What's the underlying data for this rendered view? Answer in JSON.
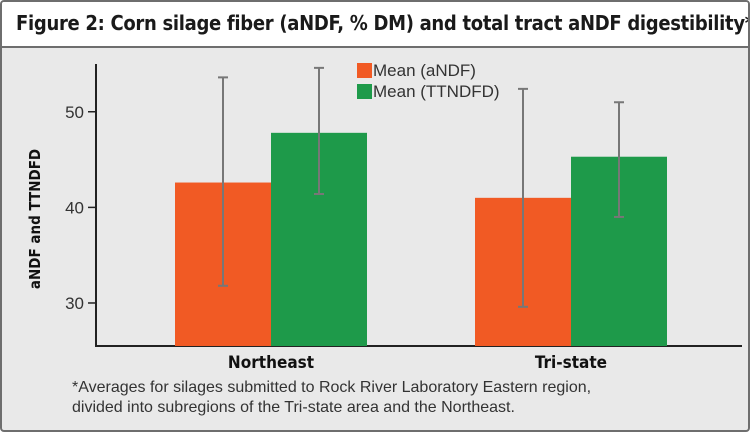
{
  "title": "Figure 2: Corn silage fiber (aNDF, % DM) and total tract aNDF digestibility*",
  "footnote_line1": "*Averages for silages submitted to Rock River Laboratory Eastern region,",
  "footnote_line2": "divided into subregions of the Tri-state area and the Northeast.",
  "chart_data": {
    "type": "bar",
    "title": "Figure 2: Corn silage fiber (aNDF, % DM) and total tract aNDF digestibility*",
    "xlabel": "",
    "ylabel": "aNDF and TTNDFD",
    "categories": [
      "Northeast",
      "Tri-state"
    ],
    "ylim": [
      25.5,
      55
    ],
    "yticks": [
      30,
      40,
      50
    ],
    "grid": false,
    "legend_position": "top-center",
    "series": [
      {
        "name": "Mean (aNDF)",
        "color": "#f15a24",
        "values": [
          42.6,
          41.0
        ],
        "error_low": [
          31.8,
          29.6
        ],
        "error_high": [
          53.6,
          52.4
        ]
      },
      {
        "name": "Mean (TTNDFD)",
        "color": "#1e9a4a",
        "values": [
          47.8,
          45.3
        ],
        "error_low": [
          41.4,
          39.0
        ],
        "error_high": [
          54.6,
          51.0
        ]
      }
    ]
  }
}
